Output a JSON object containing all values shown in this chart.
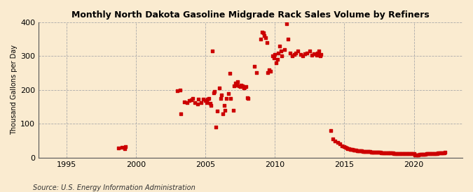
{
  "title": "Monthly North Dakota Gasoline Midgrade Rack Sales Volume by Refiners",
  "ylabel": "Thousand Gallons per Day",
  "source": "Source: U.S. Energy Information Administration",
  "background_color": "#faebd0",
  "dot_color": "#cc0000",
  "ylim": [
    0,
    400
  ],
  "yticks": [
    0,
    100,
    200,
    300,
    400
  ],
  "xlim": [
    1993.0,
    2023.5
  ],
  "xticks": [
    1995,
    2000,
    2005,
    2010,
    2015,
    2020
  ],
  "data": [
    [
      1998.75,
      28
    ],
    [
      1999.0,
      30
    ],
    [
      1999.17,
      26
    ],
    [
      1999.25,
      32
    ],
    [
      2003.0,
      198
    ],
    [
      2003.17,
      200
    ],
    [
      2003.25,
      130
    ],
    [
      2003.5,
      165
    ],
    [
      2003.67,
      162
    ],
    [
      2003.83,
      168
    ],
    [
      2004.0,
      170
    ],
    [
      2004.08,
      175
    ],
    [
      2004.25,
      163
    ],
    [
      2004.42,
      158
    ],
    [
      2004.5,
      172
    ],
    [
      2004.67,
      162
    ],
    [
      2004.83,
      172
    ],
    [
      2005.0,
      168
    ],
    [
      2005.08,
      163
    ],
    [
      2005.17,
      172
    ],
    [
      2005.25,
      175
    ],
    [
      2005.33,
      160
    ],
    [
      2005.42,
      155
    ],
    [
      2005.5,
      316
    ],
    [
      2005.58,
      192
    ],
    [
      2005.67,
      196
    ],
    [
      2005.75,
      90
    ],
    [
      2005.83,
      138
    ],
    [
      2006.0,
      205
    ],
    [
      2006.08,
      175
    ],
    [
      2006.17,
      185
    ],
    [
      2006.25,
      130
    ],
    [
      2006.33,
      155
    ],
    [
      2006.42,
      140
    ],
    [
      2006.5,
      175
    ],
    [
      2006.67,
      190
    ],
    [
      2006.75,
      250
    ],
    [
      2006.83,
      175
    ],
    [
      2007.0,
      140
    ],
    [
      2007.08,
      213
    ],
    [
      2007.17,
      220
    ],
    [
      2007.25,
      215
    ],
    [
      2007.33,
      225
    ],
    [
      2007.42,
      213
    ],
    [
      2007.5,
      210
    ],
    [
      2007.58,
      215
    ],
    [
      2007.67,
      213
    ],
    [
      2007.75,
      205
    ],
    [
      2007.83,
      208
    ],
    [
      2007.92,
      210
    ],
    [
      2008.0,
      178
    ],
    [
      2008.08,
      175
    ],
    [
      2008.5,
      270
    ],
    [
      2008.67,
      252
    ],
    [
      2009.0,
      350
    ],
    [
      2009.08,
      370
    ],
    [
      2009.17,
      368
    ],
    [
      2009.25,
      360
    ],
    [
      2009.33,
      355
    ],
    [
      2009.42,
      340
    ],
    [
      2009.5,
      252
    ],
    [
      2009.58,
      260
    ],
    [
      2009.67,
      255
    ],
    [
      2009.83,
      300
    ],
    [
      2009.92,
      295
    ],
    [
      2010.0,
      305
    ],
    [
      2010.08,
      280
    ],
    [
      2010.17,
      290
    ],
    [
      2010.25,
      310
    ],
    [
      2010.33,
      330
    ],
    [
      2010.42,
      315
    ],
    [
      2010.5,
      300
    ],
    [
      2010.67,
      320
    ],
    [
      2010.83,
      395
    ],
    [
      2010.92,
      350
    ],
    [
      2011.08,
      310
    ],
    [
      2011.25,
      300
    ],
    [
      2011.42,
      305
    ],
    [
      2011.5,
      310
    ],
    [
      2011.67,
      315
    ],
    [
      2011.83,
      305
    ],
    [
      2012.0,
      300
    ],
    [
      2012.17,
      308
    ],
    [
      2012.33,
      310
    ],
    [
      2012.5,
      315
    ],
    [
      2012.67,
      303
    ],
    [
      2012.83,
      308
    ],
    [
      2013.0,
      302
    ],
    [
      2013.08,
      310
    ],
    [
      2013.17,
      315
    ],
    [
      2013.25,
      300
    ],
    [
      2013.33,
      305
    ],
    [
      2014.0,
      80
    ],
    [
      2014.17,
      55
    ],
    [
      2014.33,
      50
    ],
    [
      2014.5,
      45
    ],
    [
      2014.67,
      42
    ],
    [
      2014.83,
      35
    ],
    [
      2015.0,
      32
    ],
    [
      2015.08,
      30
    ],
    [
      2015.17,
      29
    ],
    [
      2015.25,
      27
    ],
    [
      2015.33,
      26
    ],
    [
      2015.42,
      25
    ],
    [
      2015.5,
      25
    ],
    [
      2015.58,
      24
    ],
    [
      2015.67,
      23
    ],
    [
      2015.75,
      22
    ],
    [
      2015.83,
      22
    ],
    [
      2015.92,
      21
    ],
    [
      2016.0,
      21
    ],
    [
      2016.08,
      20
    ],
    [
      2016.17,
      20
    ],
    [
      2016.25,
      20
    ],
    [
      2016.33,
      19
    ],
    [
      2016.42,
      19
    ],
    [
      2016.5,
      19
    ],
    [
      2016.58,
      18
    ],
    [
      2016.67,
      18
    ],
    [
      2016.75,
      18
    ],
    [
      2016.83,
      18
    ],
    [
      2016.92,
      17
    ],
    [
      2017.0,
      17
    ],
    [
      2017.08,
      17
    ],
    [
      2017.17,
      17
    ],
    [
      2017.25,
      17
    ],
    [
      2017.33,
      16
    ],
    [
      2017.42,
      16
    ],
    [
      2017.5,
      16
    ],
    [
      2017.58,
      16
    ],
    [
      2017.67,
      15
    ],
    [
      2017.75,
      15
    ],
    [
      2017.83,
      15
    ],
    [
      2017.92,
      15
    ],
    [
      2018.0,
      15
    ],
    [
      2018.08,
      15
    ],
    [
      2018.17,
      14
    ],
    [
      2018.25,
      14
    ],
    [
      2018.33,
      14
    ],
    [
      2018.42,
      14
    ],
    [
      2018.5,
      14
    ],
    [
      2018.58,
      13
    ],
    [
      2018.67,
      13
    ],
    [
      2018.75,
      13
    ],
    [
      2018.83,
      13
    ],
    [
      2018.92,
      13
    ],
    [
      2019.0,
      13
    ],
    [
      2019.08,
      13
    ],
    [
      2019.17,
      13
    ],
    [
      2019.25,
      13
    ],
    [
      2019.33,
      13
    ],
    [
      2019.42,
      12
    ],
    [
      2019.5,
      12
    ],
    [
      2019.58,
      12
    ],
    [
      2019.67,
      12
    ],
    [
      2019.75,
      12
    ],
    [
      2019.83,
      12
    ],
    [
      2019.92,
      12
    ],
    [
      2020.0,
      12
    ],
    [
      2020.08,
      7
    ],
    [
      2020.17,
      8
    ],
    [
      2020.25,
      8
    ],
    [
      2020.33,
      9
    ],
    [
      2020.42,
      10
    ],
    [
      2020.5,
      10
    ],
    [
      2020.58,
      11
    ],
    [
      2020.67,
      11
    ],
    [
      2020.75,
      11
    ],
    [
      2020.83,
      11
    ],
    [
      2020.92,
      12
    ],
    [
      2021.0,
      12
    ],
    [
      2021.08,
      12
    ],
    [
      2021.17,
      12
    ],
    [
      2021.25,
      12
    ],
    [
      2021.33,
      12
    ],
    [
      2021.42,
      13
    ],
    [
      2021.5,
      13
    ],
    [
      2021.58,
      13
    ],
    [
      2021.67,
      13
    ],
    [
      2021.75,
      14
    ],
    [
      2021.83,
      14
    ],
    [
      2021.92,
      14
    ],
    [
      2022.0,
      15
    ],
    [
      2022.08,
      15
    ],
    [
      2022.17,
      15
    ],
    [
      2022.25,
      16
    ]
  ]
}
